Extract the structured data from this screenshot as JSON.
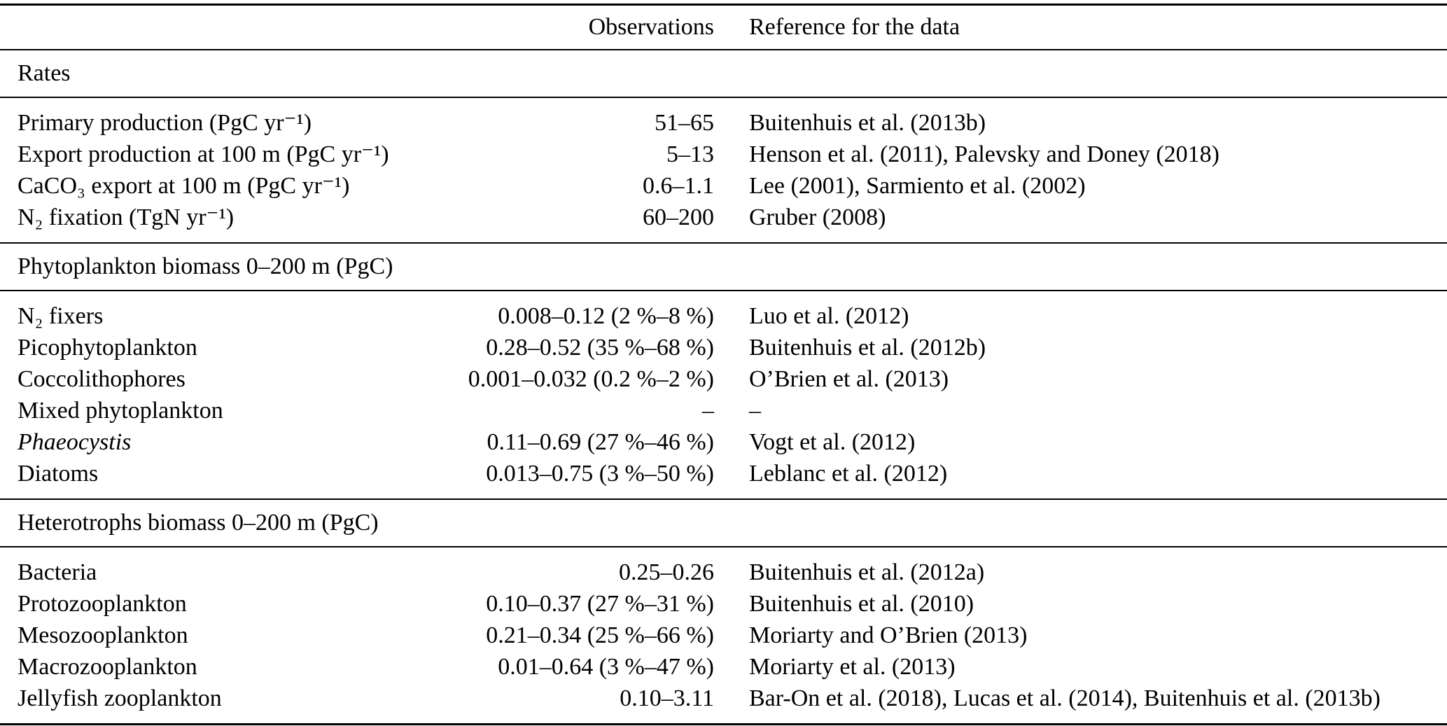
{
  "table": {
    "columns": {
      "observations": "Observations",
      "reference": "Reference for the data"
    },
    "sections": [
      {
        "title": "Rates",
        "rows": [
          {
            "label": "Primary production (PgC yr⁻¹)",
            "obs": "51–65",
            "ref": "Buitenhuis et al. (2013b)"
          },
          {
            "label": "Export production at 100 m (PgC yr⁻¹)",
            "obs": "5–13",
            "ref": "Henson et al. (2011), Palevsky and Doney (2018)"
          },
          {
            "label": "CaCO₃ export at 100 m (PgC yr⁻¹)",
            "obs": "0.6–1.1",
            "ref": "Lee (2001), Sarmiento et al. (2002)"
          },
          {
            "label": "N₂ fixation (TgN yr⁻¹)",
            "obs": "60–200",
            "ref": "Gruber (2008)"
          }
        ]
      },
      {
        "title": "Phytoplankton biomass 0–200 m (PgC)",
        "rows": [
          {
            "label": "N₂ fixers",
            "obs": "0.008–0.12 (2 %–8 %)",
            "ref": "Luo et al. (2012)"
          },
          {
            "label": "Picophytoplankton",
            "obs": "0.28–0.52 (35 %–68 %)",
            "ref": "Buitenhuis et al. (2012b)"
          },
          {
            "label": "Coccolithophores",
            "obs": "0.001–0.032 (0.2 %–2 %)",
            "ref": "O’Brien et al. (2013)"
          },
          {
            "label": "Mixed phytoplankton",
            "obs": "–",
            "ref": "–"
          },
          {
            "label": "Phaeocystis",
            "obs": "0.11–0.69 (27 %–46 %)",
            "ref": "Vogt et al. (2012)"
          },
          {
            "label": "Diatoms",
            "obs": "0.013–0.75 (3 %–50 %)",
            "ref": "Leblanc et al. (2012)"
          }
        ]
      },
      {
        "title": "Heterotrophs biomass 0–200 m (PgC)",
        "rows": [
          {
            "label": "Bacteria",
            "obs": "0.25–0.26",
            "ref": "Buitenhuis et al. (2012a)"
          },
          {
            "label": "Protozooplankton",
            "obs": "0.10–0.37 (27 %–31 %)",
            "ref": "Buitenhuis et al. (2010)"
          },
          {
            "label": "Mesozooplankton",
            "obs": "0.21–0.34 (25 %–66 %)",
            "ref": "Moriarty and O’Brien (2013)"
          },
          {
            "label": "Macrozooplankton",
            "obs": "0.01–0.64 (3 %–47 %)",
            "ref": "Moriarty et al. (2013)"
          },
          {
            "label": "Jellyfish zooplankton",
            "obs": "0.10–3.11",
            "ref": "Bar-On et al. (2018), Lucas et al. (2014), Buitenhuis et al. (2013b)"
          }
        ]
      }
    ]
  }
}
